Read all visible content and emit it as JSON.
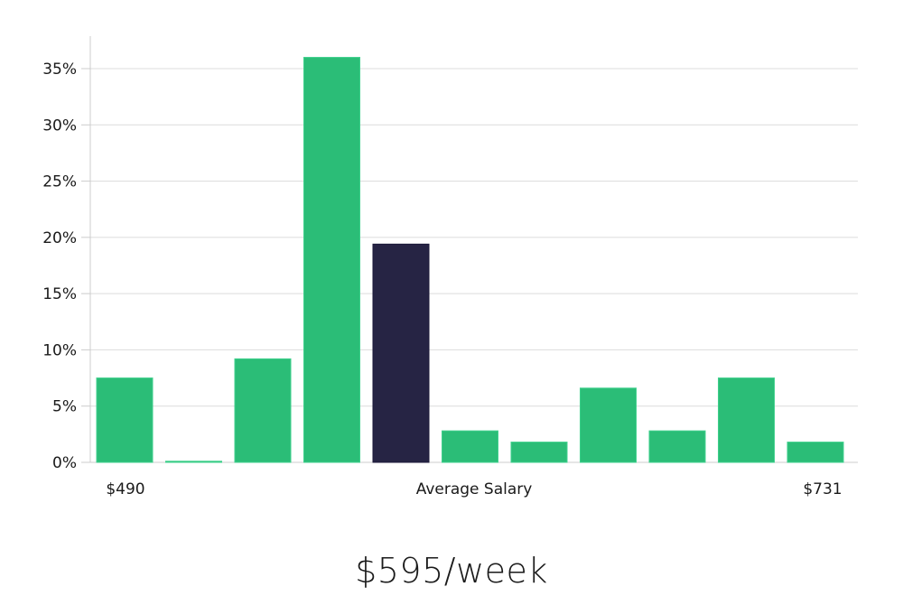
{
  "chart_data": {
    "type": "bar",
    "title": "",
    "xlabel": "Average Salary",
    "ylabel": "",
    "ylim": [
      0,
      38
    ],
    "yticks": [
      0,
      5,
      10,
      15,
      20,
      25,
      30,
      35
    ],
    "ytick_labels": [
      "0%",
      "5%",
      "10%",
      "15%",
      "20%",
      "25%",
      "30%",
      "35%"
    ],
    "grid": true,
    "x_range_labels": {
      "min": "$490",
      "max": "$731"
    },
    "categories": [
      "bin1",
      "bin2",
      "bin3",
      "bin4",
      "bin5",
      "bin6",
      "bin7",
      "bin8",
      "bin9",
      "bin10",
      "bin11"
    ],
    "values": [
      7.5,
      0.1,
      9.2,
      36.0,
      19.4,
      2.8,
      1.8,
      6.6,
      2.8,
      7.5,
      1.8
    ],
    "highlight_index": 4,
    "colors": {
      "bar": "#2bbd77",
      "highlight": "#262444",
      "grid": "#dcdcdc",
      "axis": "#cccccc"
    }
  },
  "headline": "$595/week"
}
